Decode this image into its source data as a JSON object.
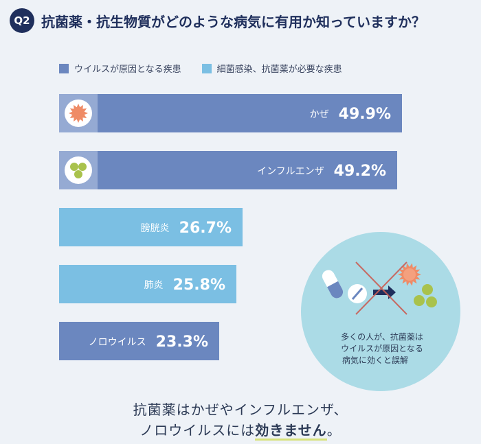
{
  "question": {
    "badge": "Q2",
    "title": "抗菌薬・抗生物質がどのような病気に有用か知っていますか？"
  },
  "legend": [
    {
      "label": "ウイルスが原因となる疾患",
      "color": "#6b87bf"
    },
    {
      "label": "細菌感染、抗菌薬が必要な疾患",
      "color": "#7bbfe3"
    }
  ],
  "chart_data": {
    "type": "bar",
    "orientation": "horizontal",
    "categories": [
      "かぜ",
      "インフルエンザ",
      "膀胱炎",
      "肺炎",
      "ノロウイルス"
    ],
    "values": [
      49.9,
      49.2,
      26.7,
      25.8,
      23.3
    ],
    "value_labels": [
      "49.9%",
      "49.2%",
      "26.7%",
      "25.8%",
      "23.3%"
    ],
    "bar_colors": [
      "#6b87bf",
      "#6b87bf",
      "#7bbfe3",
      "#7bbfe3",
      "#6b87bf"
    ],
    "unit": "%"
  },
  "callout": {
    "lines": [
      "多くの人が、抗菌薬は",
      "ウイルスが原因となる",
      "病気に効くと誤解"
    ]
  },
  "footer": {
    "line1": "抗菌薬はかぜやインフルエンザ、",
    "line2_pre": "ノロウイルスには",
    "line2_em": "効きません",
    "line2_post": "。"
  }
}
